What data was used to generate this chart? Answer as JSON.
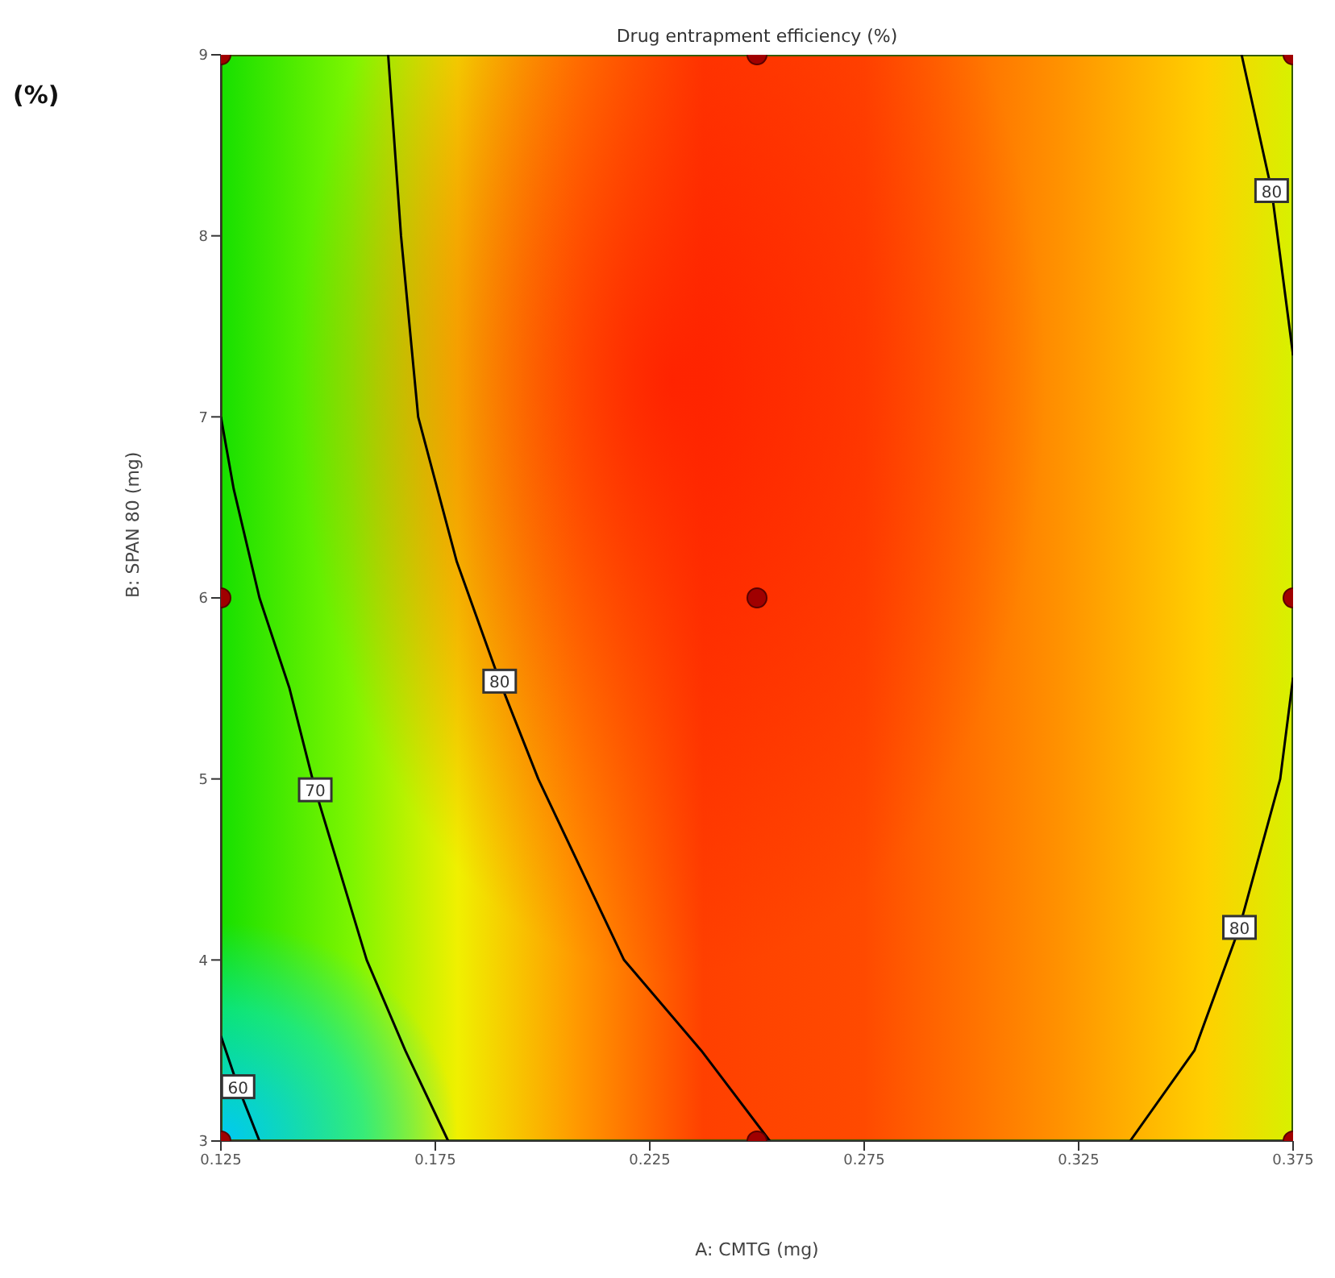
{
  "chart_data": {
    "type": "line",
    "title": "Drug entrapment efficiency (%)",
    "xlabel": "A: CMTG (mg)",
    "ylabel": "B: SPAN 80 (mg)",
    "annotations": [
      "(%)"
    ],
    "xlim": [
      0.125,
      0.375
    ],
    "xticks": [
      0.125,
      0.175,
      0.225,
      0.275,
      0.325,
      0.375
    ],
    "ylim": [
      3,
      9
    ],
    "yticks": [
      3,
      4,
      5,
      6,
      7,
      8,
      9
    ],
    "series": [
      {
        "name": "60",
        "color": "#000000",
        "x": [
          0.125,
          0.129,
          0.134
        ],
        "values": [
          3.58,
          3.3,
          3.0
        ]
      },
      {
        "name": "70",
        "color": "#000000",
        "x": [
          0.125,
          0.128,
          0.134,
          0.141,
          0.147,
          0.159,
          0.168,
          0.178
        ],
        "values": [
          7.0,
          6.6,
          6.0,
          5.5,
          4.94,
          4.0,
          3.5,
          3.0
        ]
      },
      {
        "name": "80",
        "color": "#000000",
        "x": [
          0.164,
          0.167,
          0.171,
          0.18,
          0.19,
          0.199,
          0.219,
          0.237,
          0.253
        ],
        "values": [
          9,
          8,
          7,
          6.2,
          5.54,
          5,
          4,
          3.5,
          3
        ]
      },
      {
        "name": "80",
        "color": "#000000",
        "x": [
          0.363,
          0.37,
          0.375
        ],
        "values": [
          9,
          8.25,
          7.34
        ]
      },
      {
        "name": "80",
        "color": "#000000",
        "x": [
          0.375,
          0.372,
          0.3625,
          0.352,
          0.337
        ],
        "values": [
          5.56,
          5.0,
          4.18,
          3.5,
          3.0
        ]
      },
      {
        "type": "scatter",
        "color": "#a00000",
        "marker": "circle",
        "x": [
          0.125,
          0.125,
          0.125,
          0.25,
          0.25,
          0.25,
          0.375,
          0.375,
          0.375
        ],
        "values": [
          3,
          6,
          9,
          3,
          6,
          9,
          3,
          6,
          9
        ]
      }
    ]
  }
}
